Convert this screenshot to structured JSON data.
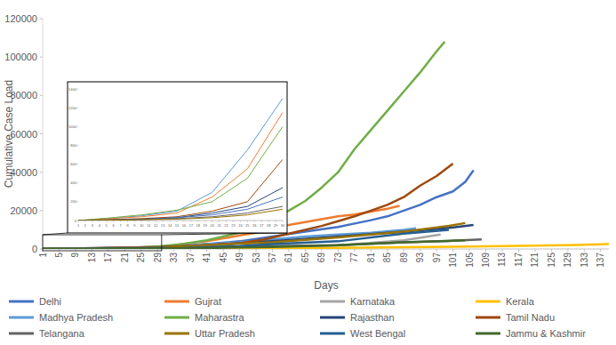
{
  "chart_data": [
    {
      "type": "line",
      "x_label": "Days",
      "y_label": "Cumulative Case Load",
      "xlim": [
        1,
        139
      ],
      "xticks": [
        1,
        5,
        9,
        13,
        17,
        21,
        25,
        29,
        33,
        37,
        41,
        45,
        49,
        53,
        57,
        61,
        65,
        69,
        73,
        77,
        81,
        85,
        89,
        93,
        97,
        101,
        105,
        109,
        113,
        117,
        121,
        125,
        129,
        133,
        137
      ],
      "ylim": [
        0,
        120000
      ],
      "yticks": [
        0,
        20000,
        40000,
        60000,
        80000,
        100000,
        120000
      ],
      "grid": false,
      "legend": "bottom",
      "series": [
        {
          "name": "Delhi",
          "color": "#4472c4",
          "x": [
            1,
            30,
            41,
            49,
            57,
            65,
            73,
            81,
            85,
            89,
            93,
            97,
            101,
            104,
            106
          ],
          "values": [
            0,
            500,
            2500,
            4000,
            6500,
            9000,
            11500,
            15000,
            17000,
            20000,
            23000,
            27000,
            30000,
            35000,
            41000
          ]
        },
        {
          "name": "Gujrat",
          "color": "#ed7d31",
          "x": [
            1,
            25,
            30,
            35,
            41,
            45,
            49,
            53,
            57,
            61,
            65,
            69,
            73,
            77,
            81,
            85,
            88
          ],
          "values": [
            0,
            100,
            600,
            2500,
            4000,
            5500,
            7000,
            8500,
            11000,
            12500,
            14000,
            15500,
            17000,
            18000,
            19500,
            21000,
            22500
          ]
        },
        {
          "name": "Karnataka",
          "color": "#a5a5a5",
          "x": [
            1,
            41,
            57,
            73,
            89,
            98
          ],
          "values": [
            0,
            600,
            1000,
            1800,
            4500,
            7500
          ]
        },
        {
          "name": "Kerala",
          "color": "#ffc000",
          "x": [
            1,
            30,
            57,
            73,
            89,
            105,
            121,
            131,
            139
          ],
          "values": [
            0,
            300,
            500,
            600,
            900,
            1300,
            1700,
            2100,
            2600
          ]
        },
        {
          "name": "Madhya Pradesh",
          "color": "#5b9bd5",
          "x": [
            1,
            30,
            41,
            49,
            57,
            65,
            73,
            81,
            89,
            92
          ],
          "values": [
            0,
            1000,
            2500,
            3500,
            5000,
            6500,
            7500,
            8500,
            10000,
            10800
          ]
        },
        {
          "name": "Maharastra",
          "color": "#70ad47",
          "x": [
            1,
            20,
            30,
            35,
            41,
            45,
            49,
            53,
            57,
            61,
            65,
            69,
            73,
            77,
            81,
            85,
            89,
            93,
            97,
            99
          ],
          "values": [
            0,
            200,
            1500,
            2500,
            4500,
            6500,
            8500,
            12000,
            15500,
            20000,
            25000,
            32000,
            40000,
            52000,
            62000,
            72000,
            82000,
            92000,
            103000,
            108000
          ]
        },
        {
          "name": "Rajasthan",
          "color": "#264478",
          "x": [
            1,
            30,
            41,
            57,
            73,
            89,
            100,
            106
          ],
          "values": [
            0,
            800,
            2000,
            4000,
            6500,
            9000,
            11000,
            12500
          ]
        },
        {
          "name": "Tamil Nadu",
          "color": "#9e480e",
          "x": [
            1,
            30,
            41,
            49,
            55,
            61,
            65,
            69,
            73,
            77,
            81,
            85,
            89,
            93,
            97,
            101
          ],
          "values": [
            0,
            1000,
            2000,
            3000,
            5000,
            8000,
            10000,
            12000,
            14500,
            17000,
            20000,
            23000,
            27000,
            33000,
            38000,
            44500
          ]
        },
        {
          "name": "Telangana",
          "color": "#636363",
          "x": [
            1,
            41,
            57,
            73,
            89,
            100,
            108
          ],
          "values": [
            0,
            1000,
            1500,
            2000,
            3500,
            4200,
            5000
          ]
        },
        {
          "name": "Uttar Pradesh",
          "color": "#997300",
          "x": [
            1,
            30,
            41,
            57,
            73,
            89,
            100,
            104
          ],
          "values": [
            0,
            400,
            2000,
            3500,
            6000,
            9000,
            12000,
            13500
          ]
        },
        {
          "name": "West Bengal",
          "color": "#255e91",
          "x": [
            1,
            35,
            49,
            57,
            73,
            89,
            100
          ],
          "values": [
            0,
            500,
            1500,
            2500,
            4000,
            8000,
            10000
          ]
        },
        {
          "name": "Jammu & Kashmir",
          "color": "#43682b",
          "x": [
            1,
            41,
            57,
            73,
            89,
            104
          ],
          "values": [
            0,
            500,
            1000,
            2000,
            3500,
            4500
          ]
        }
      ]
    },
    {
      "type": "line",
      "xlim": [
        1,
        30
      ],
      "xticks": [
        1,
        2,
        3,
        4,
        5,
        6,
        7,
        8,
        9,
        10,
        11,
        12,
        13,
        14,
        15,
        16,
        17,
        18,
        19,
        20,
        21,
        22,
        23,
        24,
        25,
        26,
        27,
        28,
        29,
        30
      ],
      "ylim": [
        0,
        1400
      ],
      "yticks": [
        0,
        200,
        400,
        600,
        800,
        1000,
        1200,
        1400
      ],
      "grid": false,
      "x": [
        1,
        5,
        10,
        15,
        20,
        25,
        30
      ],
      "series": [
        {
          "color": "#5b9bd5",
          "values": [
            0,
            20,
            50,
            100,
            300,
            750,
            1300
          ]
        },
        {
          "color": "#ed7d31",
          "values": [
            0,
            20,
            40,
            80,
            250,
            550,
            1150
          ]
        },
        {
          "color": "#70ad47",
          "values": [
            0,
            25,
            60,
            110,
            200,
            450,
            1000
          ]
        },
        {
          "color": "#9e480e",
          "values": [
            0,
            10,
            20,
            40,
            100,
            200,
            650
          ]
        },
        {
          "color": "#264478",
          "values": [
            0,
            5,
            15,
            30,
            80,
            150,
            350
          ]
        },
        {
          "color": "#4472c4",
          "values": [
            0,
            5,
            10,
            30,
            60,
            120,
            250
          ]
        },
        {
          "color": "#636363",
          "values": [
            0,
            5,
            10,
            20,
            40,
            80,
            150
          ]
        },
        {
          "color": "#997300",
          "values": [
            0,
            3,
            8,
            15,
            30,
            60,
            120
          ]
        }
      ]
    }
  ]
}
